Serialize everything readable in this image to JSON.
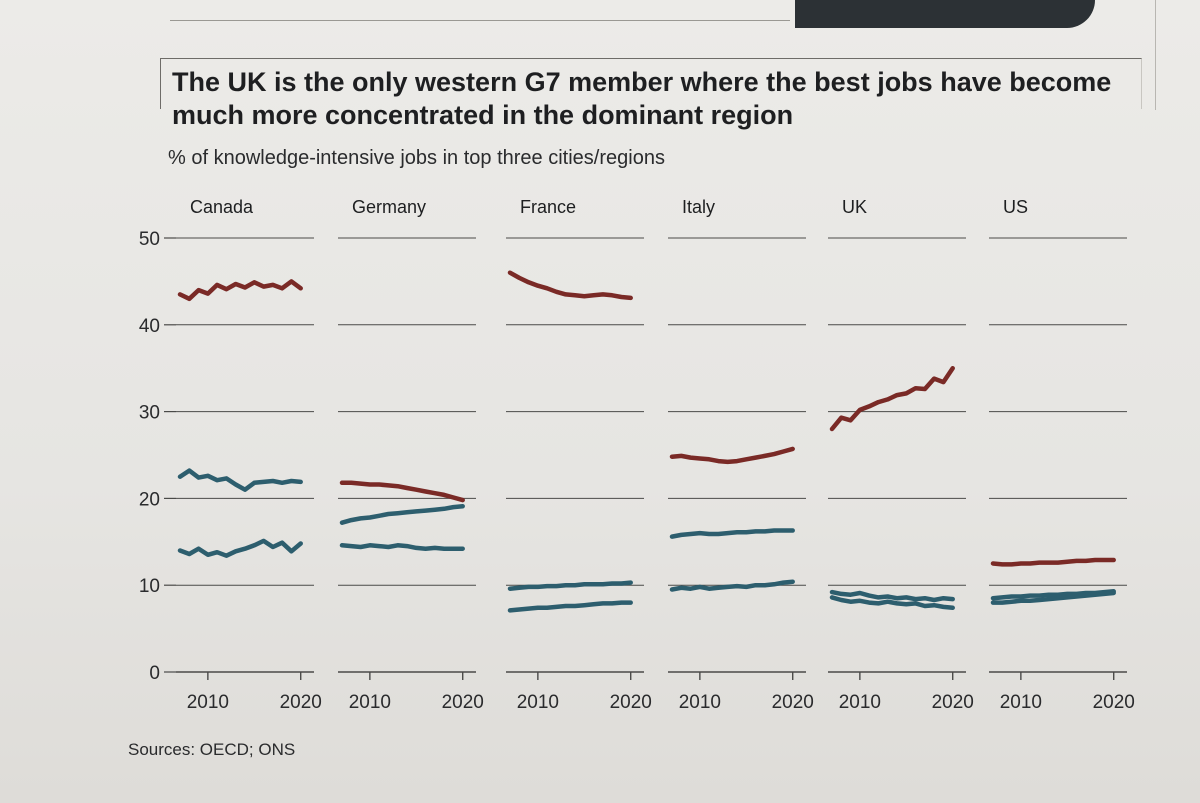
{
  "header": {
    "title": "The UK is the only western G7 member where the best jobs have become much more concentrated in the dominant region",
    "subtitle": "% of knowledge-intensive jobs in top three cities/regions",
    "source": "Sources: OECD; ONS"
  },
  "colors": {
    "top_city": "#7a2a26",
    "other_cities": "#2d5e6e",
    "grid": "#4a4a48"
  },
  "chart_data": {
    "type": "line",
    "small_multiples": true,
    "y_ticks": [
      "50",
      "40",
      "30",
      "20",
      "10",
      "0"
    ],
    "ylim": [
      0,
      50
    ],
    "x_ticks": [
      "2010",
      "2020"
    ],
    "xlim": [
      2007,
      2021
    ],
    "x": [
      2007,
      2008,
      2009,
      2010,
      2011,
      2012,
      2013,
      2014,
      2015,
      2016,
      2017,
      2018,
      2019,
      2020
    ],
    "panels": [
      {
        "country": "Canada",
        "series": [
          {
            "name": "first",
            "color_role": "top_city",
            "values": [
              43.5,
              43.0,
              44.0,
              43.6,
              44.6,
              44.1,
              44.7,
              44.3,
              44.9,
              44.4,
              44.6,
              44.2,
              45.0,
              44.2
            ]
          },
          {
            "name": "second",
            "color_role": "other_cities",
            "values": [
              22.5,
              23.2,
              22.4,
              22.6,
              22.1,
              22.3,
              21.6,
              21.0,
              21.8,
              21.9,
              22.0,
              21.8,
              22.0,
              21.9
            ]
          },
          {
            "name": "third",
            "color_role": "other_cities",
            "values": [
              14.0,
              13.6,
              14.2,
              13.5,
              13.8,
              13.4,
              13.9,
              14.2,
              14.6,
              15.1,
              14.4,
              14.9,
              13.9,
              14.8
            ]
          }
        ]
      },
      {
        "country": "Germany",
        "series": [
          {
            "name": "first",
            "color_role": "top_city",
            "values": [
              21.8,
              21.8,
              21.7,
              21.6,
              21.6,
              21.5,
              21.4,
              21.2,
              21.0,
              20.8,
              20.6,
              20.4,
              20.1,
              19.8
            ]
          },
          {
            "name": "second",
            "color_role": "other_cities",
            "values": [
              17.2,
              17.5,
              17.7,
              17.8,
              18.0,
              18.2,
              18.3,
              18.4,
              18.5,
              18.6,
              18.7,
              18.8,
              19.0,
              19.1
            ]
          },
          {
            "name": "third",
            "color_role": "other_cities",
            "values": [
              14.6,
              14.5,
              14.4,
              14.6,
              14.5,
              14.4,
              14.6,
              14.5,
              14.3,
              14.2,
              14.3,
              14.2,
              14.2,
              14.2
            ]
          }
        ]
      },
      {
        "country": "France",
        "series": [
          {
            "name": "first",
            "color_role": "top_city",
            "values": [
              46.0,
              45.4,
              44.9,
              44.5,
              44.2,
              43.8,
              43.5,
              43.4,
              43.3,
              43.4,
              43.5,
              43.4,
              43.2,
              43.1
            ]
          },
          {
            "name": "second",
            "color_role": "other_cities",
            "values": [
              9.6,
              9.7,
              9.8,
              9.8,
              9.9,
              9.9,
              10.0,
              10.0,
              10.1,
              10.1,
              10.1,
              10.2,
              10.2,
              10.3
            ]
          },
          {
            "name": "third",
            "color_role": "other_cities",
            "values": [
              7.1,
              7.2,
              7.3,
              7.4,
              7.4,
              7.5,
              7.6,
              7.6,
              7.7,
              7.8,
              7.9,
              7.9,
              8.0,
              8.0
            ]
          }
        ]
      },
      {
        "country": "Italy",
        "series": [
          {
            "name": "first",
            "color_role": "top_city",
            "values": [
              24.8,
              24.9,
              24.7,
              24.6,
              24.5,
              24.3,
              24.2,
              24.3,
              24.5,
              24.7,
              24.9,
              25.1,
              25.4,
              25.7
            ]
          },
          {
            "name": "second",
            "color_role": "other_cities",
            "values": [
              15.6,
              15.8,
              15.9,
              16.0,
              15.9,
              15.9,
              16.0,
              16.1,
              16.1,
              16.2,
              16.2,
              16.3,
              16.3,
              16.3
            ]
          },
          {
            "name": "third",
            "color_role": "other_cities",
            "values": [
              9.5,
              9.7,
              9.6,
              9.8,
              9.6,
              9.7,
              9.8,
              9.9,
              9.8,
              10.0,
              10.0,
              10.1,
              10.3,
              10.4
            ]
          }
        ]
      },
      {
        "country": "UK",
        "series": [
          {
            "name": "first",
            "color_role": "top_city",
            "values": [
              28.0,
              29.3,
              29.0,
              30.2,
              30.6,
              31.1,
              31.4,
              31.9,
              32.1,
              32.7,
              32.6,
              33.8,
              33.4,
              35.0
            ]
          },
          {
            "name": "second",
            "color_role": "other_cities",
            "values": [
              9.2,
              9.0,
              8.9,
              9.1,
              8.8,
              8.6,
              8.7,
              8.5,
              8.6,
              8.4,
              8.5,
              8.3,
              8.5,
              8.4
            ]
          },
          {
            "name": "third",
            "color_role": "other_cities",
            "values": [
              8.6,
              8.3,
              8.1,
              8.2,
              8.0,
              7.9,
              8.1,
              7.9,
              7.8,
              7.9,
              7.6,
              7.7,
              7.5,
              7.4
            ]
          }
        ]
      },
      {
        "country": "US",
        "series": [
          {
            "name": "first",
            "color_role": "top_city",
            "values": [
              12.5,
              12.4,
              12.4,
              12.5,
              12.5,
              12.6,
              12.6,
              12.6,
              12.7,
              12.8,
              12.8,
              12.9,
              12.9,
              12.9
            ]
          },
          {
            "name": "second",
            "color_role": "other_cities",
            "values": [
              8.5,
              8.6,
              8.7,
              8.7,
              8.8,
              8.8,
              8.9,
              8.9,
              9.0,
              9.0,
              9.1,
              9.1,
              9.2,
              9.3
            ]
          },
          {
            "name": "third",
            "color_role": "other_cities",
            "values": [
              8.0,
              8.0,
              8.1,
              8.2,
              8.2,
              8.3,
              8.4,
              8.5,
              8.6,
              8.7,
              8.8,
              8.9,
              9.0,
              9.1
            ]
          }
        ]
      }
    ]
  }
}
